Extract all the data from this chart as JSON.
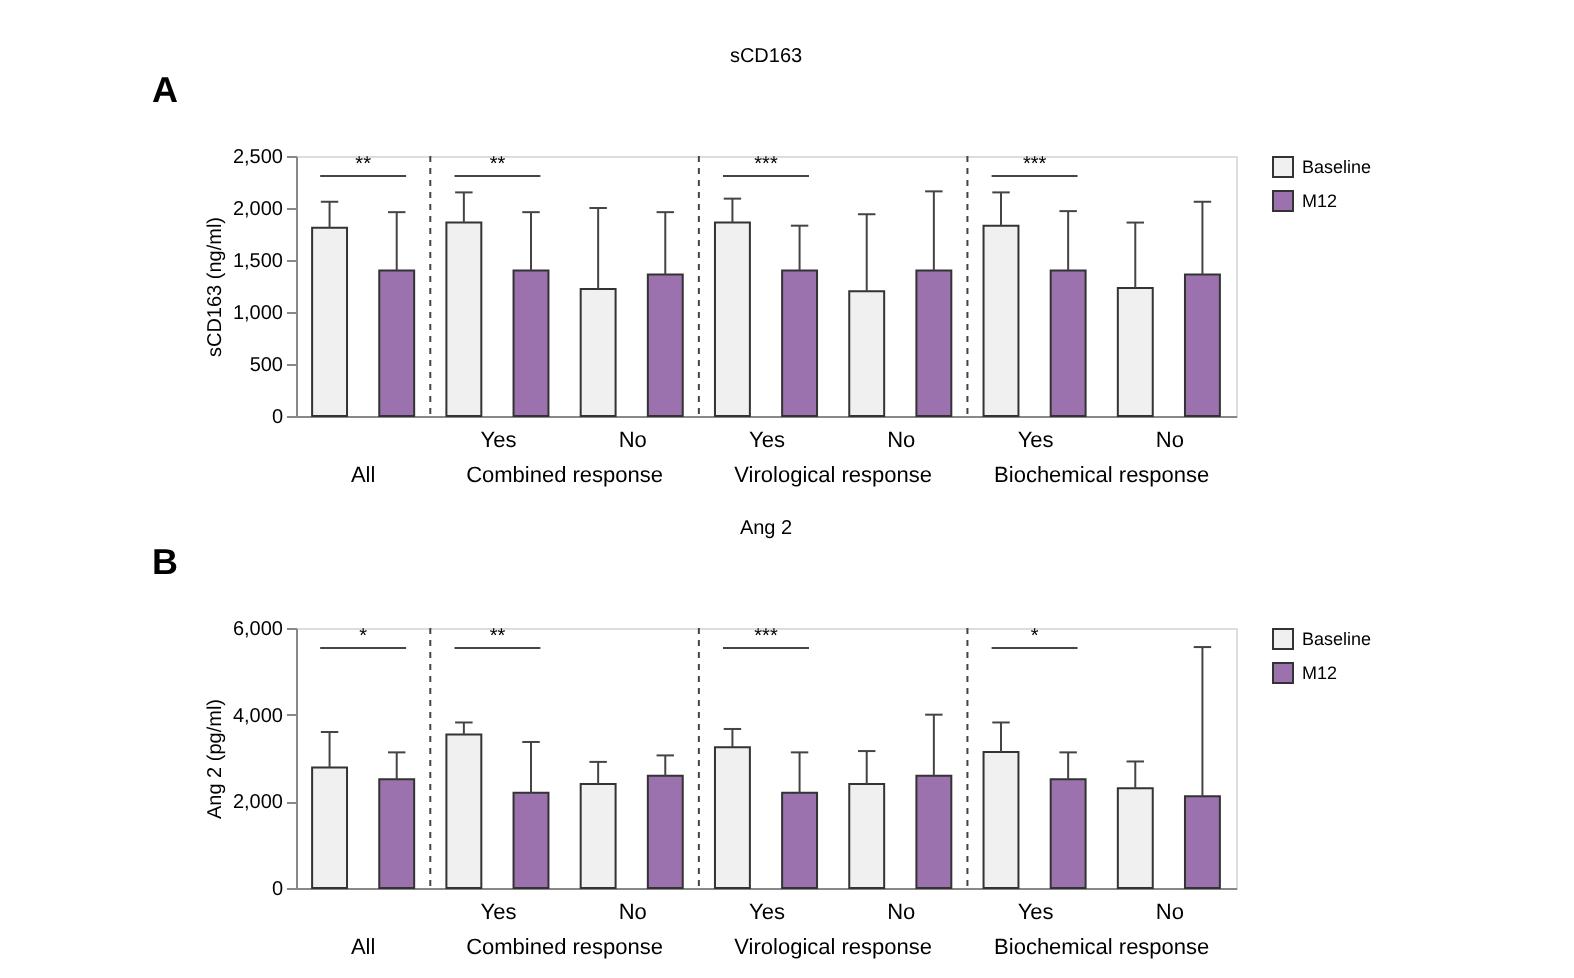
{
  "chart_data": [
    {
      "type": "bar",
      "title": "sCD163",
      "ylabel": "sCD163 (ng/ml)",
      "categories": [
        null,
        "Yes",
        "No",
        "Yes",
        "No",
        "Yes",
        "No"
      ],
      "series": [
        {
          "name": "Baseline",
          "color": "#f0f0f0",
          "values": [
            1810,
            1860,
            1220,
            1860,
            1200,
            1830,
            1230
          ],
          "errors": [
            [
              1810,
              2060
            ],
            [
              1860,
              2150
            ],
            [
              1220,
              2000
            ],
            [
              1860,
              2090
            ],
            [
              1200,
              1940
            ],
            [
              1830,
              2150
            ],
            [
              1230,
              1860
            ]
          ]
        },
        {
          "name": "M12",
          "color": "#9b72ae",
          "values": [
            1400,
            1400,
            1360,
            1400,
            1400,
            1400,
            1360
          ],
          "errors": [
            [
              1400,
              1960
            ],
            [
              1400,
              1960
            ],
            [
              1360,
              1960
            ],
            [
              1400,
              1830
            ],
            [
              1400,
              2160
            ],
            [
              1400,
              1970
            ],
            [
              1360,
              2060
            ]
          ]
        }
      ],
      "ylim": [
        0,
        2500
      ],
      "yticks": [
        0,
        {
          "value": 500,
          "label": "500"
        },
        {
          "value": 1000,
          "label": "1,000"
        },
        {
          "value": 1500,
          "label": "1,500"
        },
        {
          "value": 2000,
          "label": "2,000"
        },
        {
          "value": 2500,
          "label": "2,500"
        }
      ],
      "grid": false,
      "legend": "top right",
      "annotations": [
        "A",
        "All",
        "Combined response",
        "Virological response",
        "Biochemical response",
        "**",
        "**",
        "***",
        "***"
      ]
    },
    {
      "type": "bar",
      "title": "Ang 2",
      "ylabel": "Ang 2 (pg/ml)",
      "categories": [
        null,
        "Yes",
        "No",
        "Yes",
        "No",
        "Yes",
        "No"
      ],
      "series": [
        {
          "name": "Baseline",
          "color": "#f0f0f0",
          "values": [
            2780,
            3540,
            2400,
            3250,
            2400,
            3140,
            2300
          ],
          "errors": [
            [
              2780,
              3600
            ],
            [
              3540,
              3820
            ],
            [
              2400,
              2910
            ],
            [
              3250,
              3670
            ],
            [
              2400,
              3160
            ],
            [
              3140,
              3820
            ],
            [
              2300,
              2920
            ]
          ]
        },
        {
          "name": "M12",
          "color": "#9b72ae",
          "values": [
            2510,
            2200,
            2590,
            2200,
            2590,
            2510,
            2120
          ],
          "errors": [
            [
              2510,
              3130
            ],
            [
              2200,
              3370
            ],
            [
              2590,
              3060
            ],
            [
              2200,
              3130
            ],
            [
              2590,
              4000
            ],
            [
              2510,
              3130
            ],
            [
              2120,
              5560
            ]
          ]
        }
      ],
      "ylim": [
        0,
        6000
      ],
      "yticks": [
        0,
        {
          "value": 2000,
          "label": "2,000"
        },
        {
          "value": 4000,
          "label": "4,000"
        },
        {
          "value": 6000,
          "label": "6,000"
        }
      ],
      "grid": false,
      "legend": "top right",
      "annotations": [
        "B",
        "All",
        "Combined response",
        "Virological response",
        "Biochemical response",
        "*",
        "**",
        "***",
        "*"
      ]
    }
  ]
}
